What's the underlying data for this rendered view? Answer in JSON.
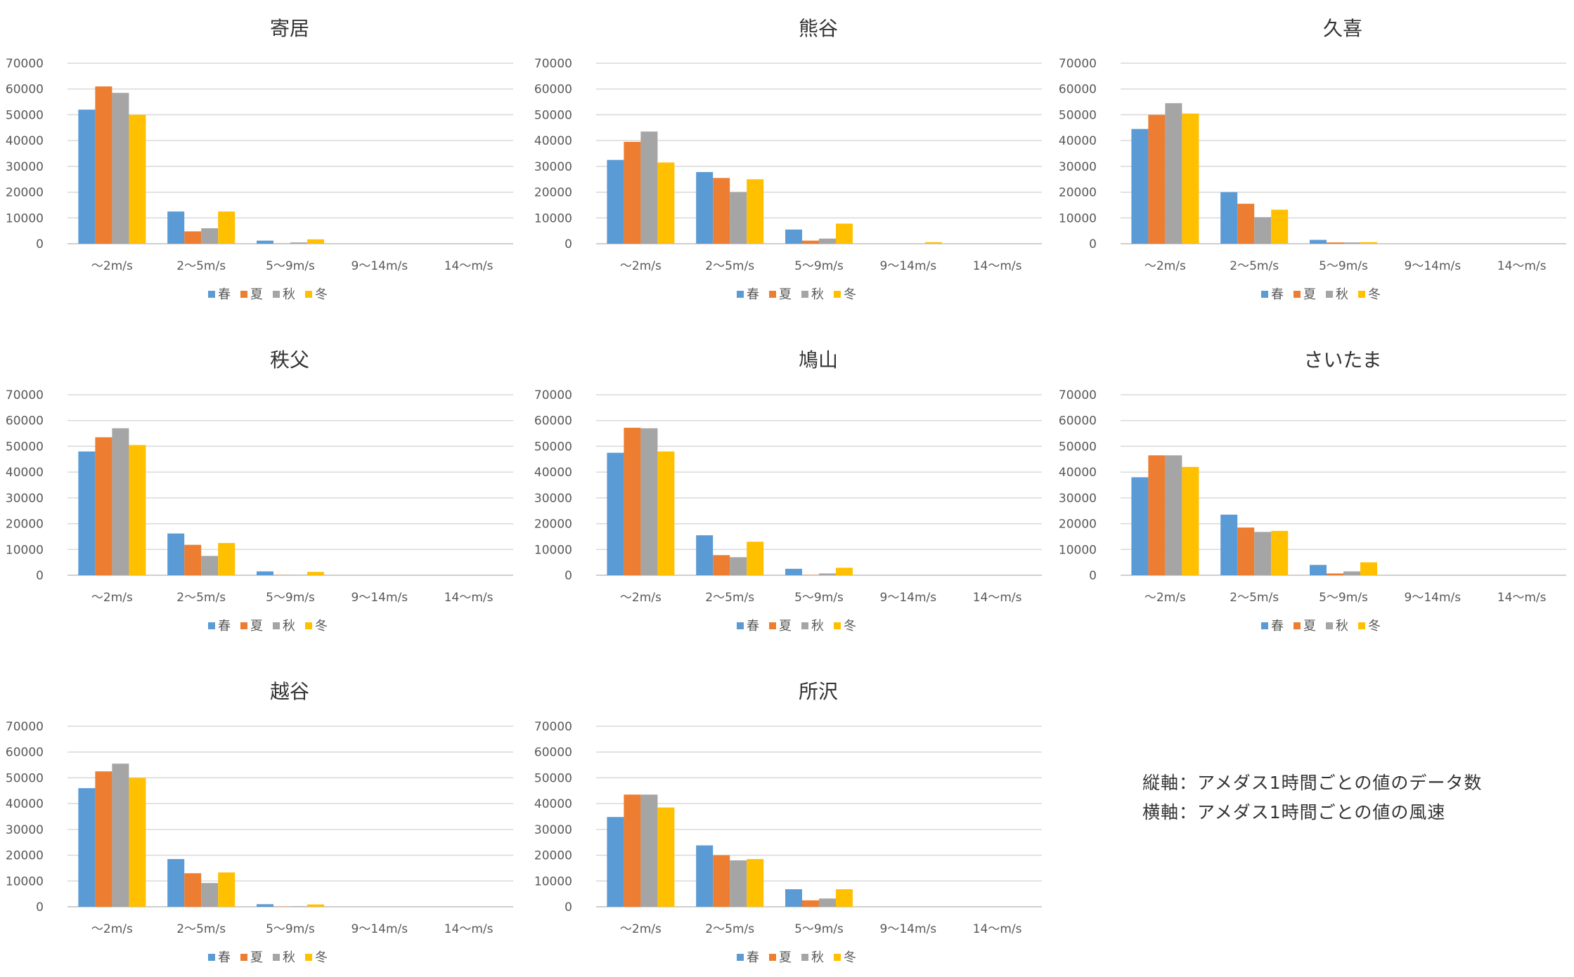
{
  "categories": [
    "〜2m/s",
    "2〜5m/s",
    "5〜9m/s",
    "9〜14m/s",
    "14〜m/s"
  ],
  "seasons": [
    {
      "name": "春",
      "color": "#5B9BD5"
    },
    {
      "name": "夏",
      "color": "#ED7D31"
    },
    {
      "name": "秋",
      "color": "#A5A5A5"
    },
    {
      "name": "冬",
      "color": "#FFC000"
    }
  ],
  "y_ticks": [
    0,
    10000,
    20000,
    30000,
    40000,
    50000,
    60000,
    70000
  ],
  "notes": {
    "vertical": "縦軸：アメダス1時間ごとの値のデータ数",
    "horizontal": "横軸：アメダス1時間ごとの値の風速"
  },
  "chart_data": [
    {
      "type": "bar",
      "title": "寄居",
      "ylim": [
        0,
        70000
      ],
      "legend": "bottom",
      "series": [
        {
          "name": "春",
          "values": [
            52000,
            12500,
            1200,
            0,
            0
          ]
        },
        {
          "name": "夏",
          "values": [
            61000,
            4800,
            100,
            0,
            0
          ]
        },
        {
          "name": "秋",
          "values": [
            58500,
            6000,
            500,
            0,
            0
          ]
        },
        {
          "name": "冬",
          "values": [
            50000,
            12500,
            1700,
            0,
            0
          ]
        }
      ]
    },
    {
      "type": "bar",
      "title": "熊谷",
      "ylim": [
        0,
        70000
      ],
      "legend": "bottom",
      "series": [
        {
          "name": "春",
          "values": [
            32500,
            27800,
            5500,
            0,
            0
          ]
        },
        {
          "name": "夏",
          "values": [
            39500,
            25500,
            1200,
            0,
            0
          ]
        },
        {
          "name": "秋",
          "values": [
            43500,
            20000,
            2000,
            0,
            0
          ]
        },
        {
          "name": "冬",
          "values": [
            31500,
            25000,
            7800,
            600,
            0
          ]
        }
      ]
    },
    {
      "type": "bar",
      "title": "久喜",
      "ylim": [
        0,
        70000
      ],
      "legend": "bottom",
      "series": [
        {
          "name": "春",
          "values": [
            44500,
            20000,
            1500,
            0,
            0
          ]
        },
        {
          "name": "夏",
          "values": [
            50000,
            15500,
            500,
            0,
            0
          ]
        },
        {
          "name": "秋",
          "values": [
            54500,
            10300,
            500,
            0,
            0
          ]
        },
        {
          "name": "冬",
          "values": [
            50500,
            13200,
            600,
            0,
            0
          ]
        }
      ]
    },
    {
      "type": "bar",
      "title": "秩父",
      "ylim": [
        0,
        70000
      ],
      "legend": "bottom",
      "series": [
        {
          "name": "春",
          "values": [
            48000,
            16200,
            1500,
            0,
            0
          ]
        },
        {
          "name": "夏",
          "values": [
            53500,
            11800,
            100,
            0,
            0
          ]
        },
        {
          "name": "秋",
          "values": [
            57000,
            7500,
            100,
            0,
            0
          ]
        },
        {
          "name": "冬",
          "values": [
            50500,
            12500,
            1300,
            0,
            0
          ]
        }
      ]
    },
    {
      "type": "bar",
      "title": "鳩山",
      "ylim": [
        0,
        70000
      ],
      "legend": "bottom",
      "series": [
        {
          "name": "春",
          "values": [
            47500,
            15500,
            2500,
            0,
            0
          ]
        },
        {
          "name": "夏",
          "values": [
            57200,
            7800,
            100,
            0,
            0
          ]
        },
        {
          "name": "秋",
          "values": [
            57000,
            7000,
            700,
            0,
            0
          ]
        },
        {
          "name": "冬",
          "values": [
            48000,
            13000,
            2900,
            0,
            0
          ]
        }
      ]
    },
    {
      "type": "bar",
      "title": "さいたま",
      "ylim": [
        0,
        70000
      ],
      "legend": "bottom",
      "series": [
        {
          "name": "春",
          "values": [
            38000,
            23500,
            4000,
            0,
            0
          ]
        },
        {
          "name": "夏",
          "values": [
            46500,
            18500,
            700,
            0,
            0
          ]
        },
        {
          "name": "秋",
          "values": [
            46500,
            16800,
            1500,
            0,
            0
          ]
        },
        {
          "name": "冬",
          "values": [
            42000,
            17200,
            5000,
            0,
            0
          ]
        }
      ]
    },
    {
      "type": "bar",
      "title": "越谷",
      "ylim": [
        0,
        70000
      ],
      "legend": "bottom",
      "series": [
        {
          "name": "春",
          "values": [
            46000,
            18500,
            1000,
            0,
            0
          ]
        },
        {
          "name": "夏",
          "values": [
            52500,
            13000,
            100,
            0,
            0
          ]
        },
        {
          "name": "秋",
          "values": [
            55500,
            9200,
            200,
            0,
            0
          ]
        },
        {
          "name": "冬",
          "values": [
            50000,
            13300,
            900,
            0,
            0
          ]
        }
      ]
    },
    {
      "type": "bar",
      "title": "所沢",
      "ylim": [
        0,
        70000
      ],
      "legend": "bottom",
      "series": [
        {
          "name": "春",
          "values": [
            34800,
            23800,
            6800,
            0,
            0
          ]
        },
        {
          "name": "夏",
          "values": [
            43500,
            20000,
            2500,
            0,
            0
          ]
        },
        {
          "name": "秋",
          "values": [
            43500,
            18000,
            3200,
            0,
            0
          ]
        },
        {
          "name": "冬",
          "values": [
            38500,
            18500,
            6800,
            0,
            0
          ]
        }
      ]
    }
  ]
}
